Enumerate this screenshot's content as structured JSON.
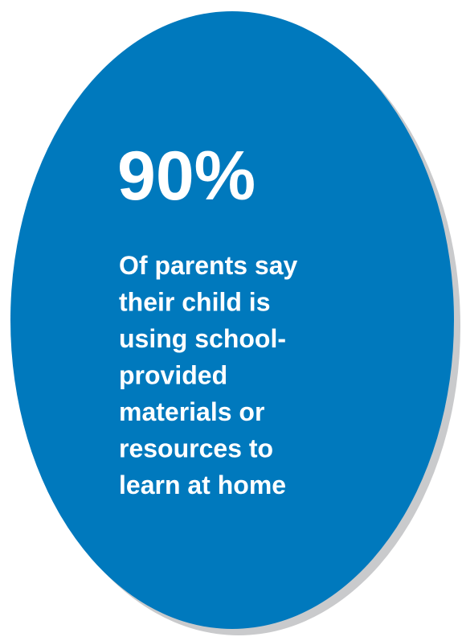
{
  "stat": "90%",
  "lines": [
    "Of parents say",
    "their child is",
    "using school-",
    "provided",
    "materials or",
    "resources to",
    "learn at home"
  ]
}
